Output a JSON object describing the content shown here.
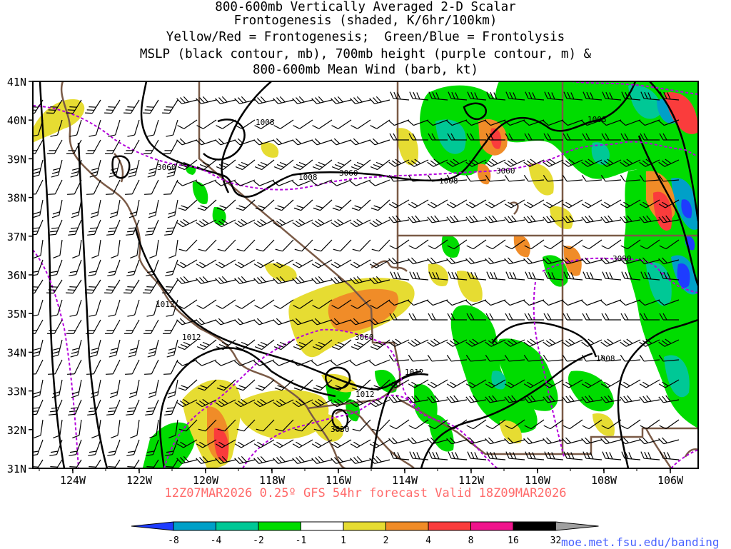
{
  "title_lines": [
    "800-600mb Vertically Averaged 2-D Scalar",
    "Frontogenesis (shaded, K/6hr/100km)",
    "Yellow/Red = Frontogenesis;  Green/Blue = Frontolysis",
    "MSLP (black contour, mb), 700mb height (purple contour, m) &",
    "800-600mb Mean Wind (barb, kt)"
  ],
  "footer": "12Z07MAR2026 0.25º GFS 54hr forecast Valid 18Z09MAR2026",
  "credit": "moe.met.fsu.edu/banding",
  "lat_labels": [
    "41N",
    "40N",
    "39N",
    "38N",
    "37N",
    "36N",
    "35N",
    "34N",
    "33N",
    "32N",
    "31N"
  ],
  "lon_labels": [
    "124W",
    "122W",
    "120W",
    "118W",
    "116W",
    "114W",
    "112W",
    "110W",
    "108W",
    "106W"
  ],
  "colorbar": {
    "colors": [
      "#1e3cff",
      "#00a0c8",
      "#00c896",
      "#00dc00",
      "#ffffff",
      "#e6dc32",
      "#f08c28",
      "#fa3c3c",
      "#f0148c",
      "#000000",
      "#a0a0a0"
    ],
    "labels": [
      "-8",
      "-4",
      "-2",
      "-1",
      "1",
      "2",
      "4",
      "8",
      "16",
      "32"
    ]
  },
  "contour_labels": {
    "mslp": [
      "1008",
      "1008",
      "1008",
      "1008",
      "1012",
      "1012",
      "1012",
      "1012",
      "1008"
    ],
    "height": [
      "3060",
      "3060",
      "3060",
      "3060",
      "3030",
      "3090"
    ]
  },
  "colors": {
    "mslp": "#000000",
    "height": "#b400dc",
    "borders": "#7a5a46"
  }
}
